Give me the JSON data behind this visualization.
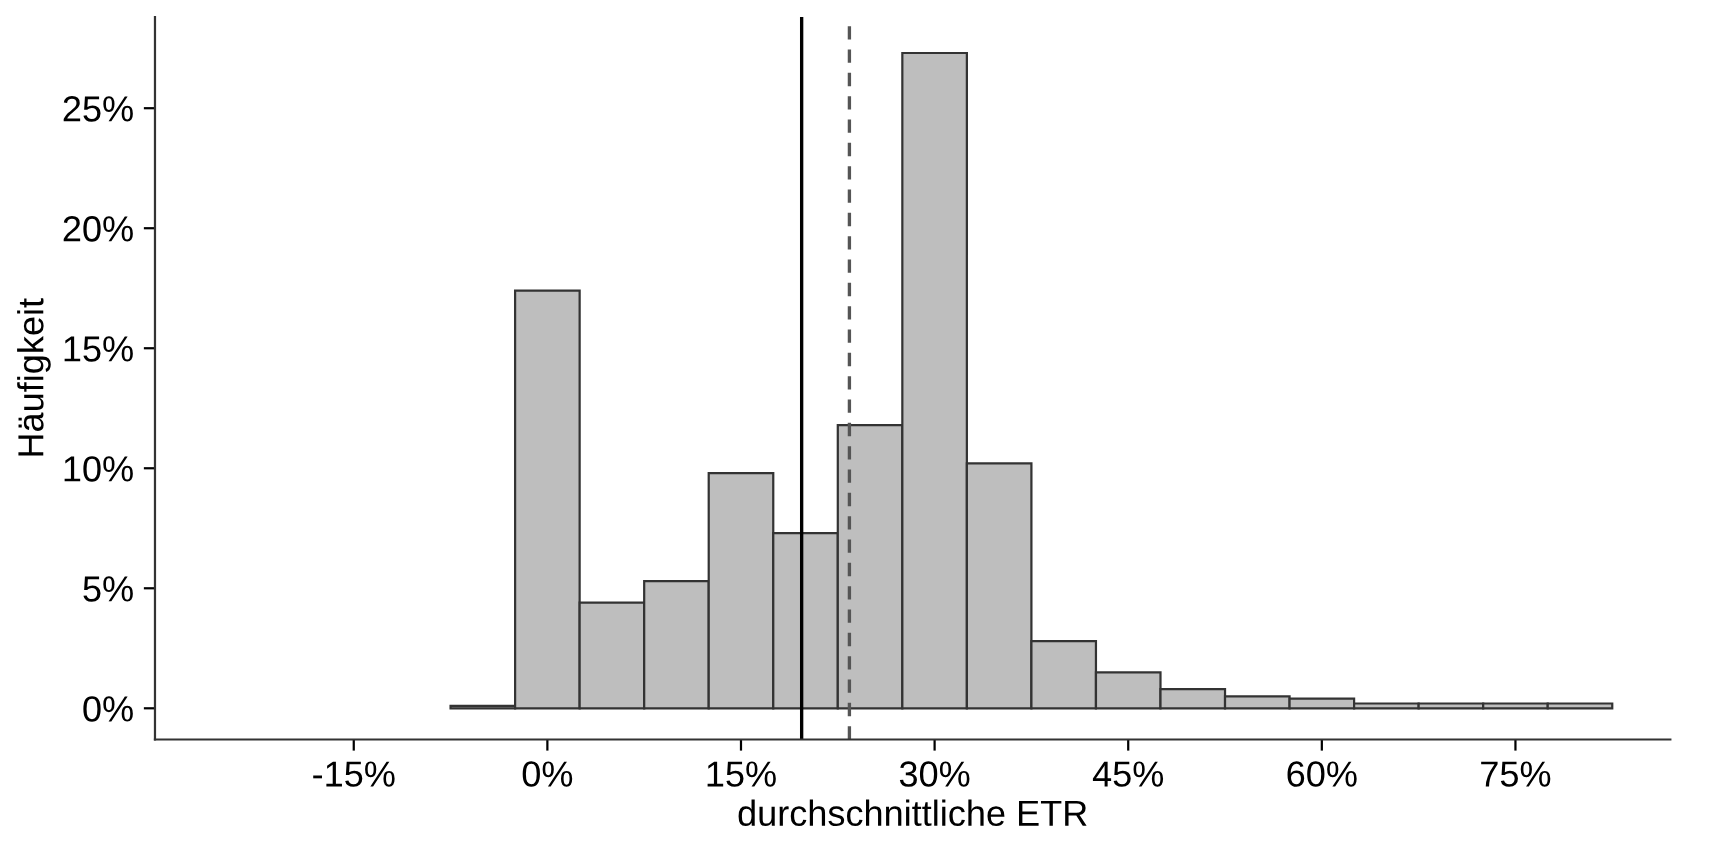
{
  "chart_data": {
    "type": "histogram",
    "xlabel": "durchschnittliche ETR",
    "ylabel": "Häufigkeit",
    "bins": [
      -22.5,
      -17.5,
      -12.5,
      -7.5,
      -2.5,
      2.5,
      7.5,
      12.5,
      17.5,
      22.5,
      27.5,
      32.5,
      37.5,
      42.5,
      47.5,
      52.5,
      57.5,
      62.5,
      67.5,
      72.5,
      77.5,
      82.5
    ],
    "values": [
      0,
      0,
      0,
      0.1,
      17.4,
      4.4,
      5.3,
      9.8,
      7.3,
      11.8,
      27.3,
      10.2,
      2.8,
      1.5,
      0.8,
      0.5,
      0.4,
      0.2,
      0.2,
      0.2,
      0.2
    ],
    "color": "#bebebe",
    "xlim": [
      -30.4,
      87
    ],
    "xticks": [
      {
        "value": -15,
        "label": "-15%"
      },
      {
        "value": 0,
        "label": "0%"
      },
      {
        "value": 15,
        "label": "15%"
      },
      {
        "value": 30,
        "label": "30%"
      },
      {
        "value": 45,
        "label": "45%"
      },
      {
        "value": 60,
        "label": "60%"
      },
      {
        "value": 75,
        "label": "75%"
      }
    ],
    "ylim": [
      -1.3,
      28.8
    ],
    "yticks": [
      {
        "value": 0,
        "label": "0%"
      },
      {
        "value": 5,
        "label": "5%"
      },
      {
        "value": 10,
        "label": "10%"
      },
      {
        "value": 15,
        "label": "15%"
      },
      {
        "value": 20,
        "label": "20%"
      },
      {
        "value": 25,
        "label": "25%"
      }
    ],
    "ref_lines": [
      {
        "axis": "x",
        "value": 19.7,
        "label": null,
        "color": "#000000",
        "line_style": "solid"
      },
      {
        "axis": "x",
        "value": 23.4,
        "label": null,
        "color": "#555555",
        "line_style": "dashed"
      }
    ],
    "grid": false,
    "legend": false
  }
}
